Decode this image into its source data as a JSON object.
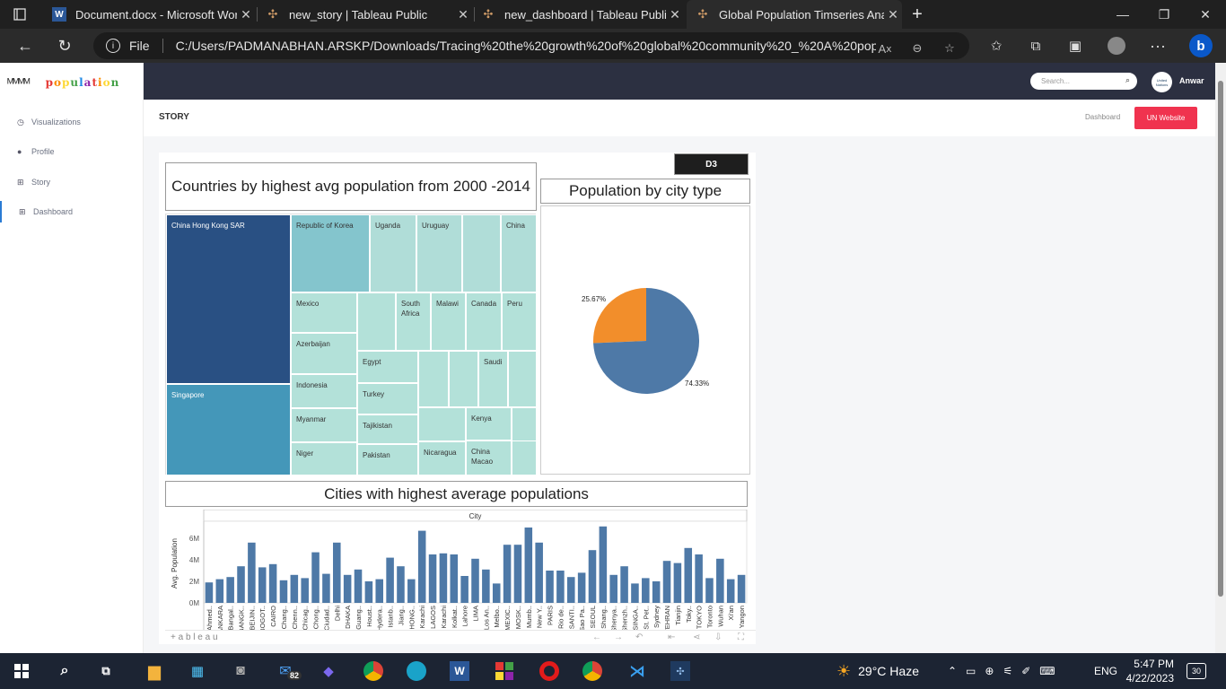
{
  "browser": {
    "tabs": [
      {
        "title": "Document.docx - Microsoft Word",
        "icon": "word-icon"
      },
      {
        "title": "new_story | Tableau Public",
        "icon": "tableau-icon"
      },
      {
        "title": "new_dashboard | Tableau Public",
        "icon": "tableau-icon"
      },
      {
        "title": "Global Population Timseries Analysis",
        "icon": "tableau-icon"
      }
    ],
    "new_tab": "+",
    "file_label": "File",
    "url": "C:/Users/PADMANABHAN.ARSKP/Downloads/Tracing%20the%20growth%20of%20global%20community%20_%20A%20pop..."
  },
  "app": {
    "logo_text": "population",
    "logo_colors": [
      "#e53935",
      "#fb8c00",
      "#fdd835",
      "#43a047",
      "#1e88e5",
      "#8e24aa",
      "#e53935",
      "#fb8c00",
      "#fdd835",
      "#43a047"
    ],
    "nav": [
      {
        "label": "Visualizations",
        "icon": "history-icon"
      },
      {
        "label": "Profile",
        "icon": "user-icon"
      },
      {
        "label": "Story",
        "icon": "table-icon"
      },
      {
        "label": "Dashboard",
        "icon": "table-icon"
      }
    ],
    "search_placeholder": "Search...",
    "user_name": "Anwar",
    "avatar_text": "United Nations",
    "story_label": "STORY",
    "dashboard_link": "Dashboard",
    "un_button": "UN Website"
  },
  "viz": {
    "d3_label": "D3",
    "treemap_title": "Countries by highest avg population from 2000 -2014",
    "pie_title": "Population by city type",
    "bar_title": "Cities with highest average populations",
    "footer_logo": "+ a b l e a u",
    "treemap": [
      {
        "label": "China Hong Kong SAR",
        "color": "#295083",
        "light": true
      },
      {
        "label": "Singapore",
        "color": "#4497b9",
        "light": true
      },
      {
        "label": "Republic of Korea",
        "color": "#84c5cd"
      },
      {
        "label": "Uganda",
        "color": "#b0ddd8"
      },
      {
        "label": "Uruguay",
        "color": "#b0ddd8"
      },
      {
        "label": "",
        "color": "#b0ddd8"
      },
      {
        "label": "China",
        "color": "#b0ddd8"
      },
      {
        "label": "Mexico",
        "color": "#b3e1d9"
      },
      {
        "label": "",
        "color": "#b3e1d9"
      },
      {
        "label": "South Africa",
        "color": "#b3e1d9"
      },
      {
        "label": "Malawi",
        "color": "#b3e1d9"
      },
      {
        "label": "Canada",
        "color": "#b3e1d9"
      },
      {
        "label": "Peru",
        "color": "#b3e1d9"
      },
      {
        "label": "Azerbaijan",
        "color": "#b3e1d9"
      },
      {
        "label": "Egypt",
        "color": "#b3e1d9"
      },
      {
        "label": "",
        "color": "#b3e1d9"
      },
      {
        "label": "",
        "color": "#b3e1d9"
      },
      {
        "label": "Saudi",
        "color": "#b3e1d9"
      },
      {
        "label": "",
        "color": "#b3e1d9"
      },
      {
        "label": "Indonesia",
        "color": "#b3e1d9"
      },
      {
        "label": "Turkey",
        "color": "#b3e1d9"
      },
      {
        "label": "Myanmar",
        "color": "#b3e1d9"
      },
      {
        "label": "Tajikistan",
        "color": "#b3e1d9"
      },
      {
        "label": "",
        "color": "#b3e1d9"
      },
      {
        "label": "Kenya",
        "color": "#b3e1d9"
      },
      {
        "label": "",
        "color": "#b3e1d9"
      },
      {
        "label": "Niger",
        "color": "#b3e1d9"
      },
      {
        "label": "Pakistan",
        "color": "#b3e1d9"
      },
      {
        "label": "Nicaragua",
        "color": "#b3e1d9"
      },
      {
        "label": "China Macao",
        "color": "#b3e1d9"
      },
      {
        "label": "",
        "color": "#b3e1d9"
      }
    ]
  },
  "chart_data": [
    {
      "type": "pie",
      "title": "Population by city type",
      "categories": [
        "",
        ""
      ],
      "values": [
        74.33,
        25.67
      ],
      "labels": [
        "74.33%",
        "25.67%"
      ],
      "colors": [
        "#4e79a7",
        "#f28e2b"
      ]
    },
    {
      "type": "bar",
      "title": "Cities with highest average populations",
      "column_header": "City",
      "ylabel": "Avg. Population",
      "yticks": [
        "0M",
        "2M",
        "4M",
        "6M"
      ],
      "ylim": [
        0,
        7500000
      ],
      "color": "#4e79a7",
      "categories": [
        "Ahmed..",
        "ANKARA",
        "Bangal..",
        "BANGK..",
        "BEIJIN..",
        "BOGOT..",
        "CAIRO",
        "Chang..",
        "Chenn..",
        "Chicag..",
        "Chong..",
        "Ciudad..",
        "Delhi",
        "DHAKA",
        "Guang..",
        "Houst..",
        "Hydera..",
        "Istanb..",
        "Jiang..",
        "HONG..",
        "Karachi",
        "LAGOS",
        "Karachi",
        "Kolkat..",
        "Lahore",
        "LIMA",
        "Los An..",
        "Melbo..",
        "MEXIC..",
        "MOSK..",
        "Mumb..",
        "New Y..",
        "PARIS",
        "Rio de..",
        "SANTI..",
        "Sao Pa..",
        "SEOUL",
        "Shang..",
        "Shenya..",
        "Shenzh..",
        "SINGA..",
        "St. Pet..",
        "Sydney",
        "TEHRAN",
        "Tianjin",
        "Toky..",
        "TOKYO",
        "Toronto",
        "Wuhan",
        "Xi'an",
        "Yangon"
      ],
      "values": [
        1900000,
        2200000,
        2400000,
        3400000,
        5600000,
        3300000,
        3600000,
        2100000,
        2600000,
        2300000,
        4700000,
        2700000,
        5600000,
        2600000,
        3100000,
        2000000,
        2200000,
        4200000,
        3400000,
        2200000,
        6700000,
        4500000,
        4600000,
        4500000,
        2500000,
        4100000,
        3100000,
        1800000,
        5400000,
        5400000,
        7000000,
        5600000,
        3000000,
        3000000,
        2400000,
        2800000,
        4900000,
        7100000,
        2600000,
        3400000,
        1800000,
        2300000,
        2000000,
        3900000,
        3700000,
        5100000,
        4500000,
        2300000,
        4100000,
        2200000,
        2600000
      ]
    }
  ],
  "taskbar": {
    "weather": "29°C  Haze",
    "lang": "ENG",
    "time": "5:47 PM",
    "date": "4/22/2023",
    "mail_badge": "82",
    "notif_badge": "30"
  }
}
